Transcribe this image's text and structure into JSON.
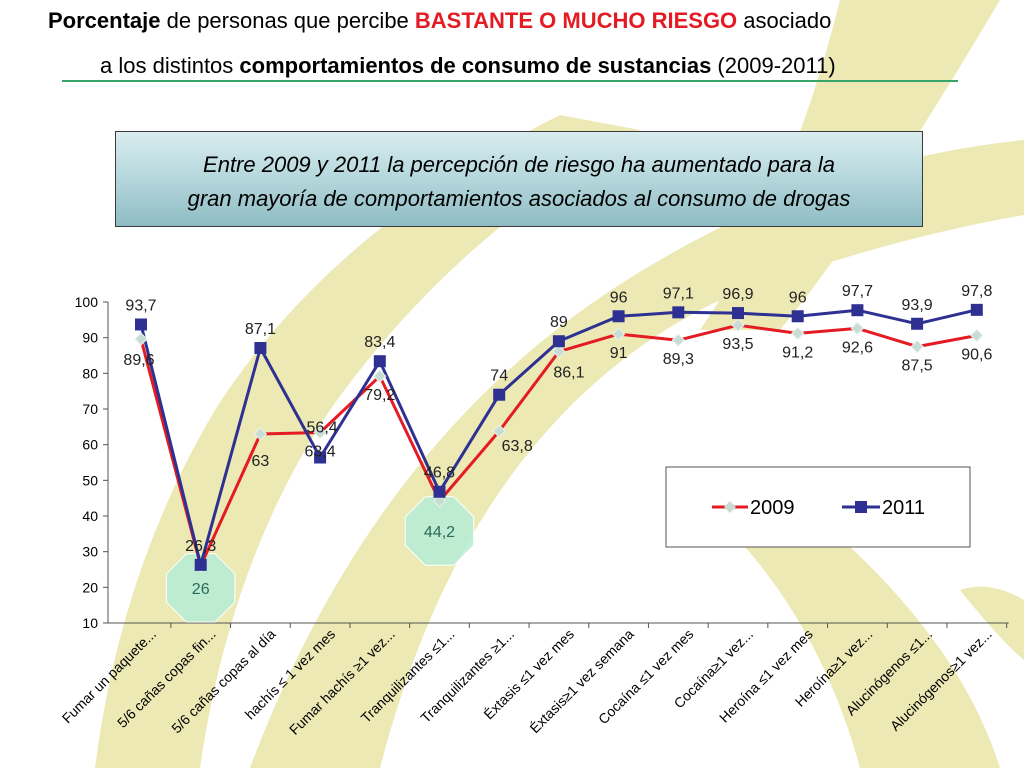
{
  "header": {
    "title_line1": [
      {
        "text": "Porcentaje",
        "style": "bold"
      },
      {
        "text": " de personas que percibe ",
        "style": "normal"
      },
      {
        "text": "BASTANTE O MUCHO RIESGO",
        "style": "red"
      },
      {
        "text": " asociado",
        "style": "normal"
      }
    ],
    "title_line2": [
      {
        "text": "a los distintos ",
        "style": "normal"
      },
      {
        "text": "comportamientos de consumo de sustancias",
        "style": "bold"
      },
      {
        "text": " (2009-2011)",
        "style": "normal"
      }
    ]
  },
  "callout": {
    "line1": "Entre 2009 y 2011 la percepción de riesgo ha aumentado para la",
    "line2": "gran mayoría de comportamientos asociados al consumo de drogas"
  },
  "colors": {
    "s2009": "#e41b23",
    "s2009_marker": "#c9dcd4",
    "s2011": "#2e3192",
    "background_band": "#ece9b4",
    "highlight_fill": "#b5ecd5",
    "highlight_text": "#2a6a5a"
  },
  "chart_data": {
    "type": "line",
    "ylim": [
      10,
      100
    ],
    "yticks": [
      10,
      20,
      30,
      40,
      50,
      60,
      70,
      80,
      90,
      100
    ],
    "grid": false,
    "legend_position": "right",
    "categories": [
      "Fumar un paquete...",
      "5/6 cañas copas fin...",
      "5/6 cañas copas al día",
      "hachís ≤ 1 vez mes",
      "Fumar hachís ≥1 vez...",
      "Tranquilizantes ≤1...",
      "Tranquilizantes ≥1...",
      "Éxtasis  ≤1 vez mes",
      "Éxtasis≥1 vez semana",
      "Cocaína ≤1 vez mes",
      "Cocaína≥1 vez...",
      "Heroína  ≤1 vez mes",
      "Heroína≥1 vez...",
      "Alucinógenos  ≤1...",
      "Alucinógenos≥1 vez..."
    ],
    "series": [
      {
        "name": "2009",
        "values": [
          89.6,
          26,
          63,
          63.4,
          79.2,
          44.2,
          63.8,
          86.1,
          91,
          89.3,
          93.5,
          91.2,
          92.6,
          87.5,
          90.6
        ],
        "labels": [
          "89,6",
          "26",
          "63",
          "63,4",
          "79,2",
          "44,2",
          "63,8",
          "86,1",
          "91",
          "89,3",
          "93,5",
          "91,2",
          "92,6",
          "87,5",
          "90,6"
        ]
      },
      {
        "name": "2011",
        "values": [
          93.7,
          26.3,
          87.1,
          56.4,
          83.4,
          46.8,
          74,
          89,
          96,
          97.1,
          96.9,
          96,
          97.7,
          93.9,
          97.8
        ],
        "labels": [
          "93,7",
          "26,3",
          "87,1",
          "56,4",
          "83,4",
          "46,8",
          "74",
          "89",
          "96",
          "97,1",
          "96,9",
          "96",
          "97,7",
          "93,9",
          "97,8"
        ]
      }
    ],
    "highlighted_points": [
      {
        "series": "2009",
        "index": 1
      },
      {
        "series": "2009",
        "index": 5
      }
    ]
  }
}
